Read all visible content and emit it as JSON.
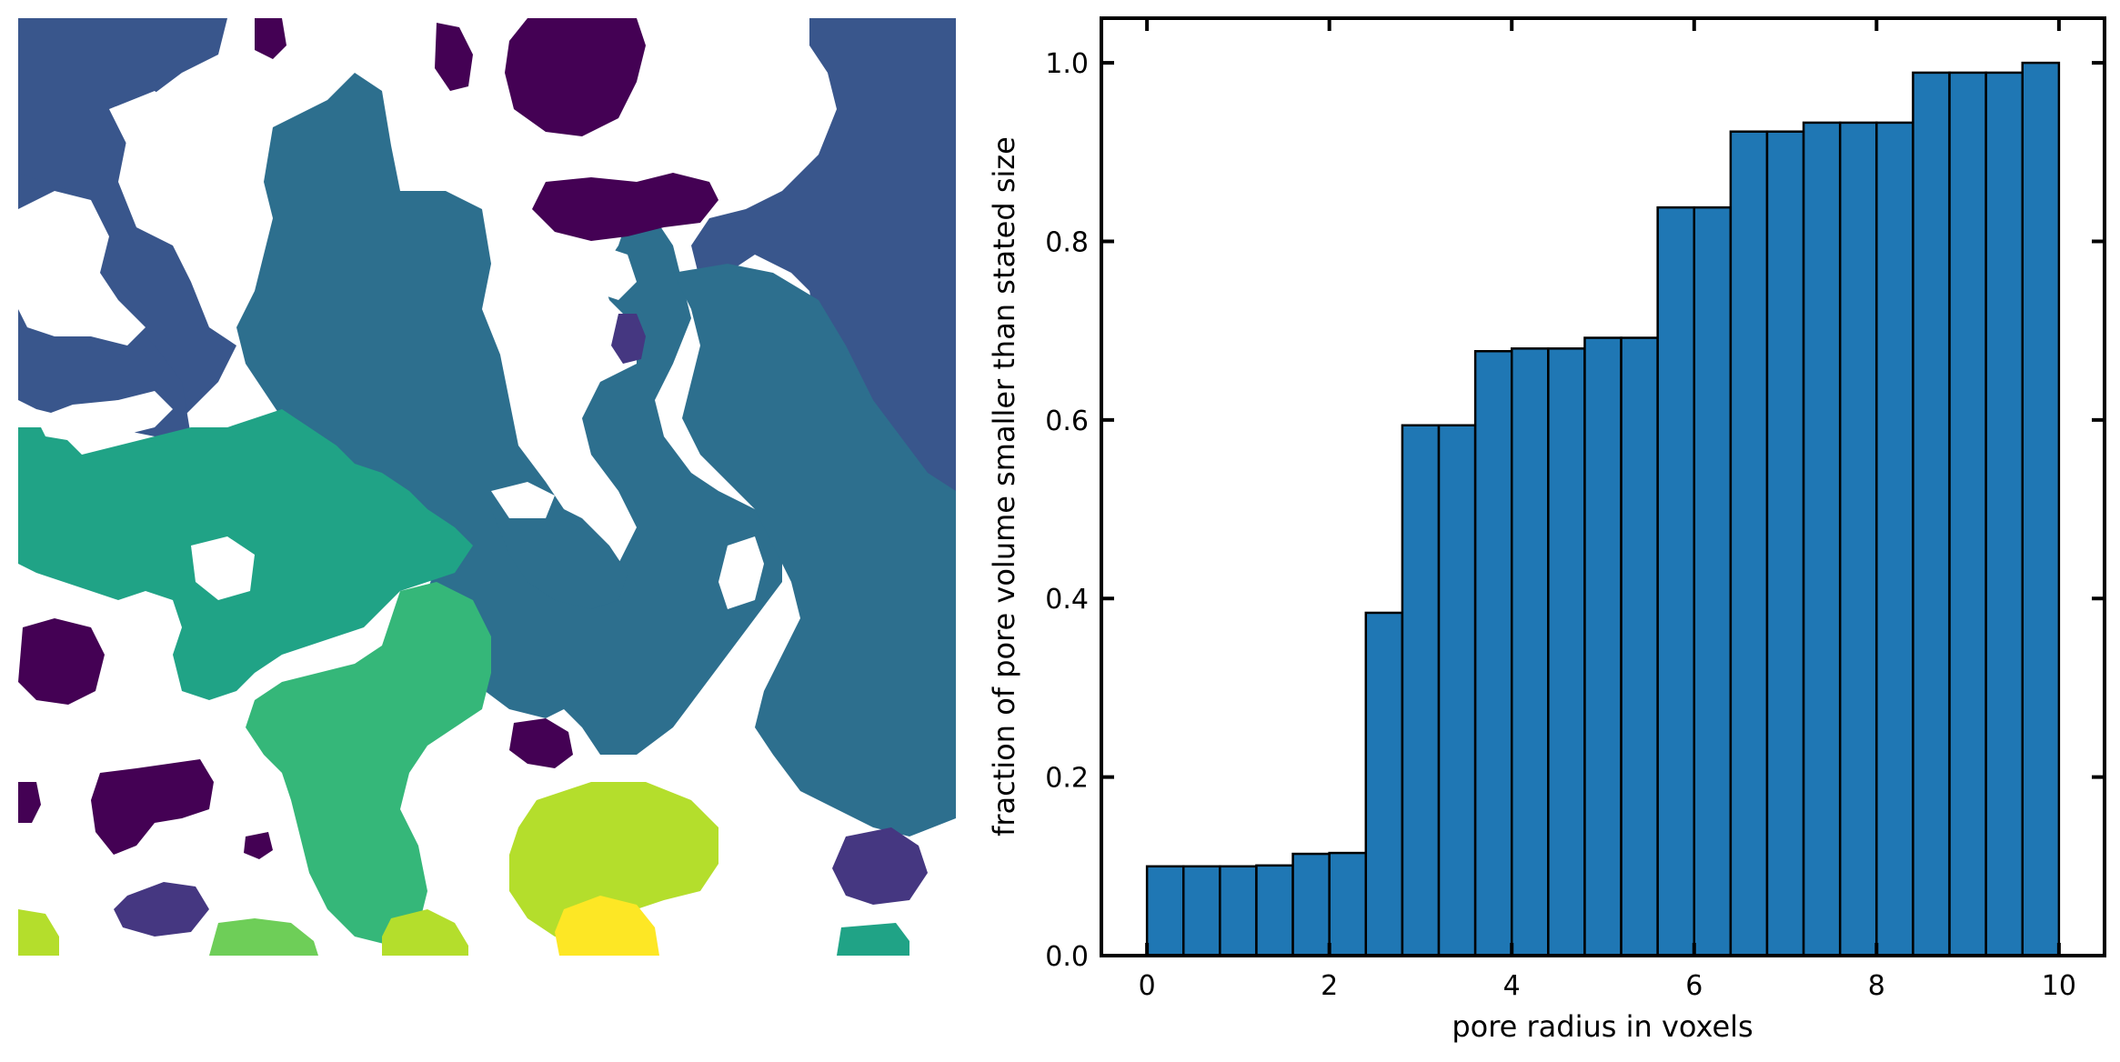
{
  "figure": {
    "image_panel": {
      "description_type": "pore-size-labeled porous medium",
      "colormap": [
        "#440154",
        "#453781",
        "#39568c",
        "#2d6f8e",
        "#238a8d",
        "#20a386",
        "#35b779",
        "#6ece58",
        "#b4de2c",
        "#fde725"
      ]
    }
  },
  "chart_data": {
    "type": "bar",
    "xlabel": "pore radius in voxels",
    "ylabel": "fraction of pore volume smaller than stated size",
    "xlim": [
      -0.5,
      10.5
    ],
    "ylim": [
      0,
      1.05
    ],
    "xticks": [
      "0",
      "2",
      "4",
      "6",
      "8",
      "10"
    ],
    "yticks": [
      "0.0",
      "0.2",
      "0.4",
      "0.6",
      "0.8",
      "1.0"
    ],
    "bar_color": "#1f77b4",
    "bin_edges": [
      0.0,
      0.4,
      0.8,
      1.2,
      1.6,
      2.0,
      2.4,
      2.8,
      3.2,
      3.6,
      4.0,
      4.4,
      4.8,
      5.2,
      5.6,
      6.0,
      6.4,
      6.8,
      7.2,
      7.6,
      8.0,
      8.4,
      8.8,
      9.2,
      9.6,
      10.0
    ],
    "values": [
      0.1,
      0.1,
      0.1,
      0.101,
      0.114,
      0.115,
      0.384,
      0.594,
      0.594,
      0.677,
      0.68,
      0.68,
      0.692,
      0.692,
      0.838,
      0.838,
      0.923,
      0.923,
      0.933,
      0.933,
      0.933,
      0.989,
      0.989,
      0.989,
      1.0
    ]
  }
}
